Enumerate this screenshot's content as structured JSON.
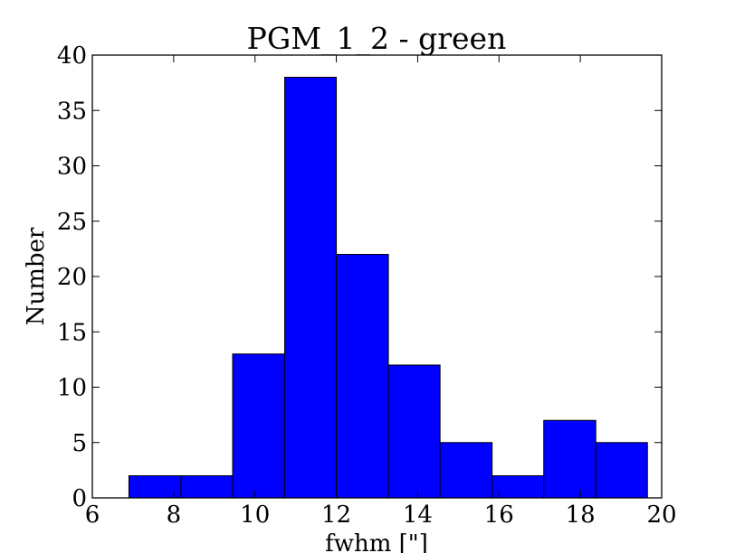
{
  "chart_data": {
    "type": "bar",
    "title": "PGM_1_2 - green",
    "xlabel": "fwhm [\"]",
    "ylabel": "Number",
    "xlim": [
      6,
      20
    ],
    "ylim": [
      0,
      40
    ],
    "xticks": [
      "6",
      "8",
      "10",
      "12",
      "14",
      "16",
      "18",
      "20"
    ],
    "yticks": [
      "0",
      "5",
      "10",
      "15",
      "20",
      "25",
      "30",
      "35",
      "40"
    ],
    "bin_edges": [
      6.9,
      8.18,
      9.45,
      10.73,
      12.0,
      13.28,
      14.55,
      15.83,
      17.1,
      18.38,
      19.65
    ],
    "values": [
      2,
      2,
      13,
      38,
      22,
      12,
      5,
      2,
      7,
      5
    ],
    "bar_color": "#0000ff",
    "grid": false
  }
}
